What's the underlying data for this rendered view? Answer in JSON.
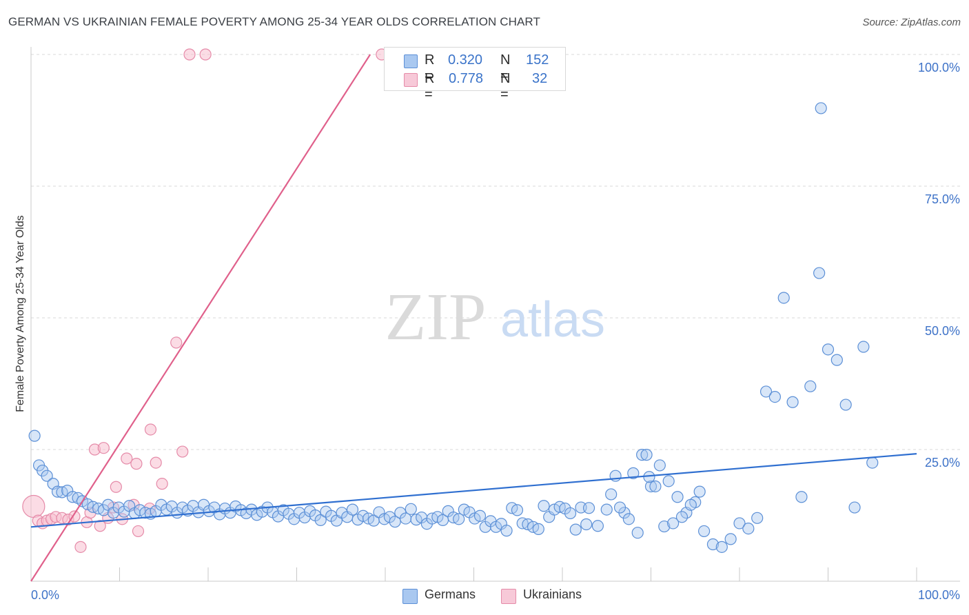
{
  "title": "GERMAN VS UKRAINIAN FEMALE POVERTY AMONG 25-34 YEAR OLDS CORRELATION CHART",
  "source": "Source: ZipAtlas.com",
  "watermark": {
    "zip": "ZIP",
    "atlas": "atlas"
  },
  "legend_top": {
    "rows": [
      {
        "r_label": "R =",
        "r_value": "0.320",
        "n_label": "N =",
        "n_value": "152"
      },
      {
        "r_label": "R =",
        "r_value": "0.778",
        "n_label": "N =",
        "n_value": "32"
      }
    ]
  },
  "legend_bottom": {
    "germans": "Germans",
    "ukrainians": "Ukrainians"
  },
  "colors": {
    "germans_fill": "#a9c8f0",
    "germans_stroke": "#5b8fd6",
    "germans_line": "#2f6fd0",
    "ukrainians_fill": "#f7bfd0",
    "ukrainians_stroke": "#e58aa8",
    "ukrainians_line": "#e0608b",
    "tick_label": "#3d72c8",
    "grid": "#d9d9d9"
  },
  "chart_data": {
    "type": "scatter",
    "title": "GERMAN VS UKRAINIAN FEMALE POVERTY AMONG 25-34 YEAR OLDS CORRELATION CHART",
    "xlabel": "",
    "ylabel": "Female Poverty Among 25-34 Year Olds",
    "xlim": [
      0,
      100
    ],
    "ylim": [
      0,
      100
    ],
    "x_tick_labels": [
      "0.0%",
      "100.0%"
    ],
    "y_ticks": [
      25,
      50,
      75,
      100
    ],
    "y_tick_labels": [
      "25.0%",
      "50.0%",
      "75.0%",
      "100.0%"
    ],
    "grid": true,
    "legend_position": "bottom",
    "series": [
      {
        "name": "Germans",
        "R": 0.32,
        "N": 152,
        "trend": {
          "x0": 0,
          "y0": 10.3,
          "x1": 100,
          "y1": 24.2
        },
        "points": [
          [
            0.4,
            27.6
          ],
          [
            0.9,
            22.0
          ],
          [
            1.3,
            21.0
          ],
          [
            1.8,
            20.0
          ],
          [
            2.5,
            18.5
          ],
          [
            3.0,
            17.0
          ],
          [
            3.5,
            16.9
          ],
          [
            4.1,
            17.2
          ],
          [
            4.7,
            16.0
          ],
          [
            5.3,
            15.8
          ],
          [
            5.8,
            15.2
          ],
          [
            6.4,
            14.6
          ],
          [
            7.0,
            14.1
          ],
          [
            7.6,
            13.8
          ],
          [
            8.2,
            13.5
          ],
          [
            8.7,
            14.5
          ],
          [
            9.3,
            13.0
          ],
          [
            9.9,
            14.0
          ],
          [
            10.5,
            13.2
          ],
          [
            11.1,
            14.3
          ],
          [
            11.7,
            12.9
          ],
          [
            12.3,
            13.5
          ],
          [
            12.9,
            13.0
          ],
          [
            13.5,
            12.8
          ],
          [
            14.1,
            13.3
          ],
          [
            14.7,
            14.5
          ],
          [
            15.3,
            13.6
          ],
          [
            15.9,
            14.2
          ],
          [
            16.5,
            13.0
          ],
          [
            17.1,
            14.0
          ],
          [
            17.7,
            13.4
          ],
          [
            18.3,
            14.3
          ],
          [
            18.9,
            13.1
          ],
          [
            19.5,
            14.5
          ],
          [
            20.1,
            13.3
          ],
          [
            20.7,
            14.0
          ],
          [
            21.3,
            12.7
          ],
          [
            21.9,
            13.8
          ],
          [
            22.5,
            13.0
          ],
          [
            23.1,
            14.2
          ],
          [
            23.7,
            13.5
          ],
          [
            24.3,
            12.9
          ],
          [
            24.9,
            13.6
          ],
          [
            25.5,
            12.6
          ],
          [
            26.1,
            13.2
          ],
          [
            26.7,
            14.0
          ],
          [
            27.3,
            13.1
          ],
          [
            27.9,
            12.3
          ],
          [
            28.5,
            13.5
          ],
          [
            29.1,
            12.8
          ],
          [
            29.7,
            11.8
          ],
          [
            30.3,
            13.0
          ],
          [
            30.9,
            12.1
          ],
          [
            31.5,
            13.3
          ],
          [
            32.1,
            12.5
          ],
          [
            32.7,
            11.6
          ],
          [
            33.3,
            13.2
          ],
          [
            33.9,
            12.4
          ],
          [
            34.5,
            11.5
          ],
          [
            35.1,
            13.0
          ],
          [
            35.7,
            12.2
          ],
          [
            36.3,
            13.6
          ],
          [
            36.9,
            11.7
          ],
          [
            37.5,
            12.4
          ],
          [
            38.1,
            11.9
          ],
          [
            38.7,
            11.5
          ],
          [
            39.3,
            13.1
          ],
          [
            39.9,
            11.8
          ],
          [
            40.5,
            12.2
          ],
          [
            41.1,
            11.3
          ],
          [
            41.7,
            13.0
          ],
          [
            42.3,
            11.9
          ],
          [
            42.9,
            13.7
          ],
          [
            43.5,
            11.7
          ],
          [
            44.1,
            12.1
          ],
          [
            44.7,
            10.9
          ],
          [
            45.3,
            11.9
          ],
          [
            45.9,
            12.2
          ],
          [
            46.5,
            11.6
          ],
          [
            47.1,
            13.3
          ],
          [
            47.7,
            12.1
          ],
          [
            48.3,
            11.8
          ],
          [
            48.9,
            13.6
          ],
          [
            49.5,
            13.1
          ],
          [
            50.1,
            11.9
          ],
          [
            50.7,
            12.4
          ],
          [
            51.3,
            10.3
          ],
          [
            51.9,
            11.4
          ],
          [
            52.5,
            10.3
          ],
          [
            53.1,
            10.9
          ],
          [
            53.7,
            9.6
          ],
          [
            54.3,
            13.9
          ],
          [
            54.9,
            13.5
          ],
          [
            55.5,
            11.0
          ],
          [
            56.1,
            10.8
          ],
          [
            56.7,
            10.3
          ],
          [
            57.3,
            9.9
          ],
          [
            57.9,
            14.3
          ],
          [
            58.5,
            12.2
          ],
          [
            59.1,
            13.6
          ],
          [
            59.7,
            14.1
          ],
          [
            60.3,
            13.8
          ],
          [
            60.9,
            12.9
          ],
          [
            61.5,
            9.8
          ],
          [
            62.1,
            14.0
          ],
          [
            62.7,
            10.8
          ],
          [
            65.0,
            13.6
          ],
          [
            66.0,
            20.0
          ],
          [
            67.0,
            13.0
          ],
          [
            68.0,
            20.5
          ],
          [
            69.0,
            24.0
          ],
          [
            70.0,
            18.0
          ],
          [
            71.0,
            22.0
          ],
          [
            72.0,
            19.0
          ],
          [
            73.0,
            16.0
          ],
          [
            74.0,
            13.0
          ],
          [
            75.0,
            15.0
          ],
          [
            76.0,
            9.5
          ],
          [
            77.0,
            7.0
          ],
          [
            78.0,
            6.5
          ],
          [
            79.0,
            8.0
          ],
          [
            80.0,
            11.0
          ],
          [
            81.0,
            10.0
          ],
          [
            82.0,
            12.0
          ],
          [
            83.0,
            36.0
          ],
          [
            84.0,
            35.0
          ],
          [
            85.0,
            53.8
          ],
          [
            86.0,
            34.0
          ],
          [
            87.0,
            16.0
          ],
          [
            88.0,
            37.0
          ],
          [
            89.0,
            58.5
          ],
          [
            90.0,
            44.0
          ],
          [
            91.0,
            42.0
          ],
          [
            92.0,
            33.5
          ],
          [
            93.0,
            14.0
          ],
          [
            94.0,
            44.5
          ],
          [
            95.0,
            22.5
          ],
          [
            89.2,
            89.8
          ],
          [
            69.5,
            24.0
          ],
          [
            63.0,
            13.9
          ],
          [
            64.0,
            10.5
          ],
          [
            65.5,
            16.5
          ],
          [
            66.5,
            14.0
          ],
          [
            67.5,
            11.8
          ],
          [
            68.5,
            9.2
          ],
          [
            69.8,
            19.8
          ],
          [
            70.5,
            18.0
          ],
          [
            71.5,
            10.4
          ],
          [
            72.5,
            11.0
          ],
          [
            73.5,
            12.2
          ],
          [
            74.5,
            14.5
          ],
          [
            75.5,
            17.0
          ]
        ]
      },
      {
        "name": "Ukrainians",
        "R": 0.778,
        "N": 32,
        "trend": {
          "x0": 0,
          "y0": 0,
          "x1": 38.3,
          "y1": 100
        },
        "points": [
          [
            0.3,
            14.2
          ],
          [
            0.8,
            11.5
          ],
          [
            1.3,
            11.0
          ],
          [
            1.8,
            11.5
          ],
          [
            2.3,
            11.8
          ],
          [
            2.8,
            12.2
          ],
          [
            3.5,
            12.0
          ],
          [
            4.2,
            11.7
          ],
          [
            4.9,
            12.3
          ],
          [
            5.6,
            6.5
          ],
          [
            6.3,
            11.2
          ],
          [
            6.7,
            13.0
          ],
          [
            7.2,
            25.0
          ],
          [
            7.8,
            10.5
          ],
          [
            8.2,
            25.3
          ],
          [
            8.7,
            12.0
          ],
          [
            9.3,
            14.0
          ],
          [
            9.6,
            17.9
          ],
          [
            10.3,
            11.8
          ],
          [
            10.8,
            23.3
          ],
          [
            11.6,
            14.5
          ],
          [
            11.9,
            22.3
          ],
          [
            12.1,
            9.5
          ],
          [
            13.4,
            13.8
          ],
          [
            13.5,
            28.8
          ],
          [
            14.1,
            22.5
          ],
          [
            14.8,
            18.5
          ],
          [
            16.4,
            45.3
          ],
          [
            17.1,
            24.6
          ],
          [
            17.9,
            100
          ],
          [
            19.7,
            100
          ],
          [
            39.6,
            100
          ]
        ]
      }
    ]
  }
}
